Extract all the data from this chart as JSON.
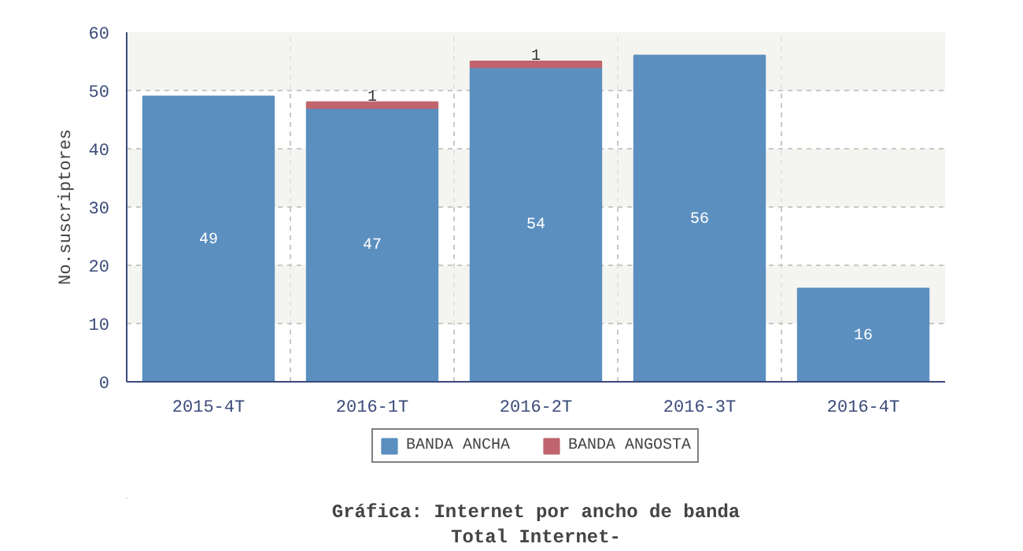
{
  "chart_data": {
    "type": "bar",
    "stacked": true,
    "title": "Gráfica: Internet por ancho de banda",
    "subtitle": "Total Internet-",
    "ylabel": "No.suscriptores",
    "categories": [
      "2015-4T",
      "2016-1T",
      "2016-2T",
      "2016-3T",
      "2016-4T"
    ],
    "series": [
      {
        "name": "BANDA ANCHA",
        "color": "#5b8fbf",
        "values": [
          49,
          47,
          54,
          56,
          16
        ]
      },
      {
        "name": "BANDA ANGOSTA",
        "color": "#c0646e",
        "values": [
          null,
          1,
          1,
          null,
          null
        ]
      }
    ],
    "ylim": [
      0,
      60
    ],
    "yticks": [
      0,
      10,
      20,
      30,
      40,
      50,
      60
    ],
    "grid": true,
    "legend": "bottom",
    "data_labels": true
  }
}
